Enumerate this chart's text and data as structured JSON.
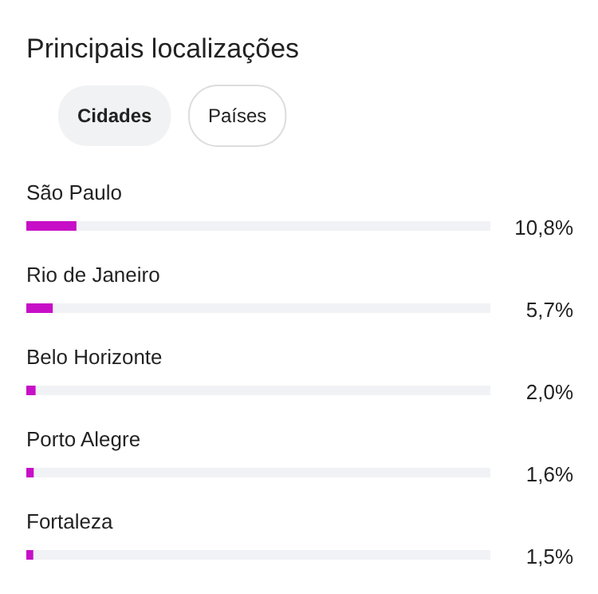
{
  "chart_data": {
    "type": "bar",
    "orientation": "horizontal",
    "title": "Principais localizações",
    "annotations": [
      "Cidades",
      "Países"
    ],
    "categories": [
      "São Paulo",
      "Rio de Janeiro",
      "Belo Horizonte",
      "Porto Alegre",
      "Fortaleza"
    ],
    "values": [
      10.8,
      5.7,
      2.0,
      1.6,
      1.5
    ],
    "value_labels": [
      "10,8%",
      "5,7%",
      "2,0%",
      "1,6%",
      "1,5%"
    ],
    "color": "#c70fc7",
    "xlim": [
      0,
      100
    ],
    "tick_labels": false
  }
}
